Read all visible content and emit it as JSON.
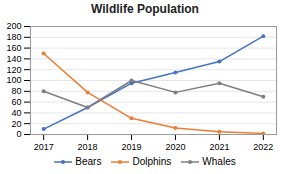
{
  "chart_data": {
    "type": "line",
    "title": "Wildlife Population",
    "x": [
      2017,
      2018,
      2019,
      2020,
      2021,
      2022
    ],
    "series": [
      {
        "name": "Bears",
        "color": "#4472C4",
        "values": [
          10,
          50,
          95,
          115,
          135,
          182
        ]
      },
      {
        "name": "Dolphins",
        "color": "#ED7D31",
        "values": [
          150,
          78,
          30,
          12,
          5,
          2
        ]
      },
      {
        "name": "Whales",
        "color": "#7F7F7F",
        "values": [
          80,
          50,
          100,
          78,
          95,
          70
        ]
      }
    ],
    "xlim": [
      2016.7,
      2022.3
    ],
    "xticks": [
      2017,
      2018,
      2019,
      2020,
      2021,
      2022
    ],
    "ylim": [
      0,
      200
    ],
    "yticks": [
      0,
      20,
      40,
      60,
      80,
      100,
      120,
      140,
      160,
      180,
      200
    ],
    "grid": "y",
    "marker": "circle",
    "legend": "bottom"
  }
}
